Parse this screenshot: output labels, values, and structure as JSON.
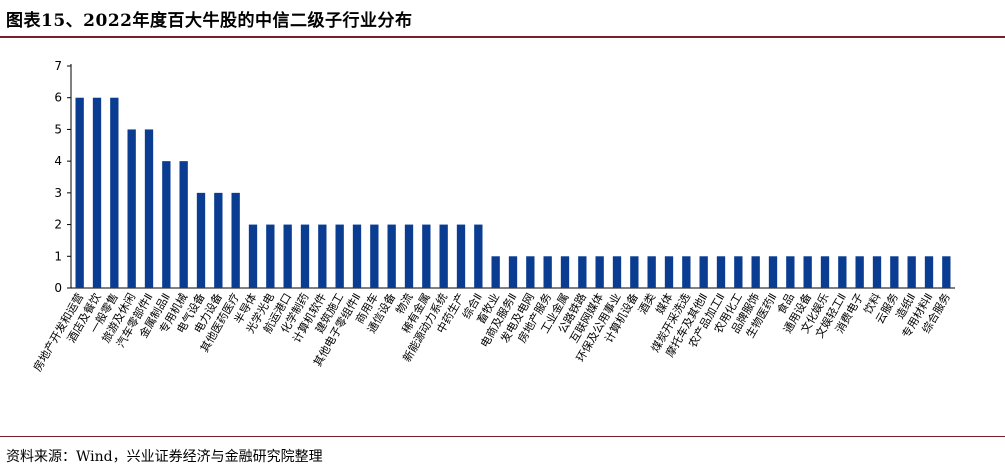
{
  "header": {
    "title": "图表15、2022年度百大牛股的中信二级子行业分布"
  },
  "footer": {
    "source": "资料来源：Wind，兴业证券经济与金融研究院整理"
  },
  "colors": {
    "bar": "#0a3d91",
    "rule": "#7b1e2b",
    "axis": "#000000"
  },
  "chart_data": {
    "type": "bar",
    "title": "图表15、2022年度百大牛股的中信二级子行业分布",
    "xlabel": "",
    "ylabel": "",
    "ylim": [
      0,
      7
    ],
    "yticks": [
      0,
      1,
      2,
      3,
      4,
      5,
      6,
      7
    ],
    "grid": false,
    "legend": "none",
    "categories": [
      "房地产开发和运营",
      "酒店及餐饮",
      "一般零售",
      "旅游及休闲",
      "汽车零部件Ⅱ",
      "金属制品Ⅱ",
      "专用机械",
      "电气设备",
      "电力设备",
      "其他医药医疗",
      "半导体",
      "光学光电",
      "航运港口",
      "化学制药",
      "计算机软件",
      "建筑施工",
      "其他电子零组件Ⅱ",
      "商用车",
      "通信设备",
      "物流",
      "稀有金属",
      "新能源动力系统",
      "中药生产",
      "综合Ⅱ",
      "畜牧业",
      "电商及服务Ⅱ",
      "发电及电网",
      "房地产服务",
      "工业金属",
      "公路铁路",
      "互联网媒体",
      "环保及公用事业",
      "计算机设备",
      "酒类",
      "媒体",
      "煤炭开采洗选",
      "摩托车及其他Ⅱ",
      "农产品加工Ⅱ",
      "农用化工",
      "品牌服饰",
      "生物医药Ⅱ",
      "食品",
      "通用设备",
      "文化娱乐",
      "文娱轻工Ⅱ",
      "消费电子",
      "饮料",
      "云服务",
      "造纸Ⅱ",
      "专用材料Ⅱ",
      "综合服务"
    ],
    "values": [
      6,
      6,
      6,
      5,
      5,
      4,
      4,
      3,
      3,
      3,
      2,
      2,
      2,
      2,
      2,
      2,
      2,
      2,
      2,
      2,
      2,
      2,
      2,
      2,
      1,
      1,
      1,
      1,
      1,
      1,
      1,
      1,
      1,
      1,
      1,
      1,
      1,
      1,
      1,
      1,
      1,
      1,
      1,
      1,
      1,
      1,
      1,
      1,
      1,
      1,
      1
    ]
  }
}
